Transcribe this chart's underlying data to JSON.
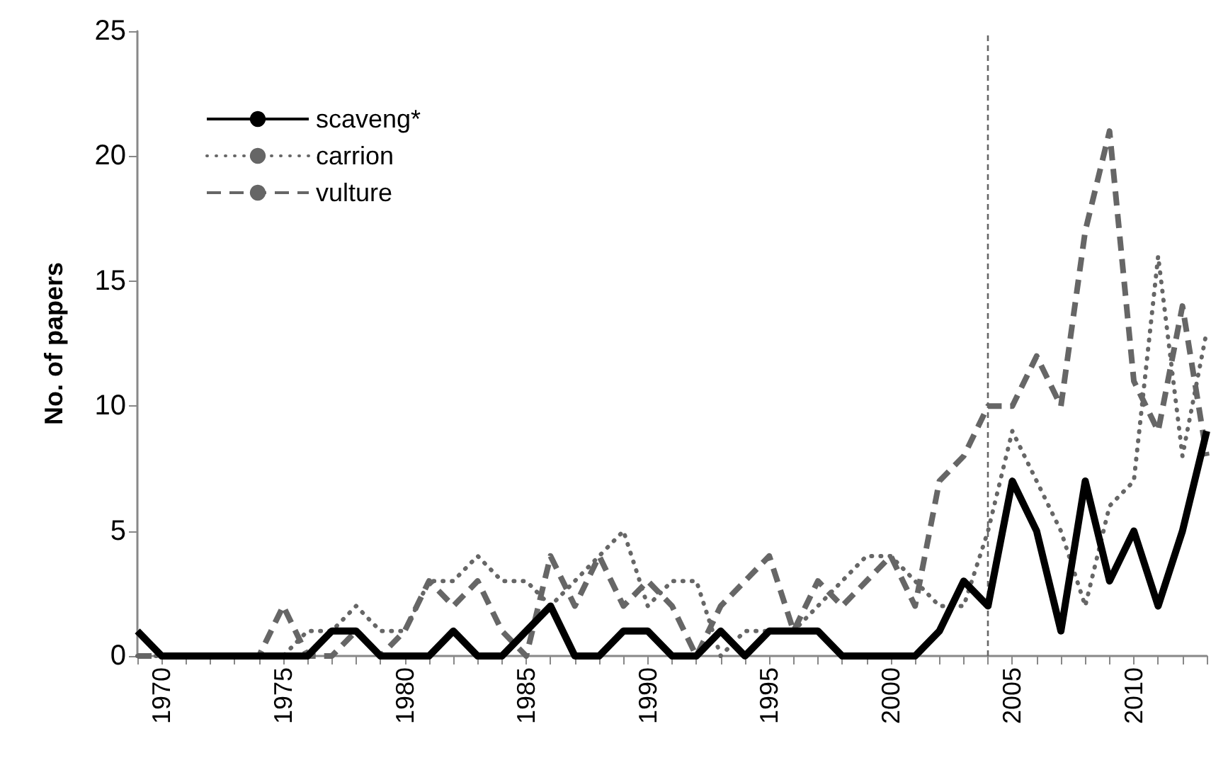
{
  "chart_data": {
    "type": "line",
    "ylabel": "No. of papers",
    "x": [
      1969,
      1970,
      1971,
      1972,
      1973,
      1974,
      1975,
      1976,
      1977,
      1978,
      1979,
      1980,
      1981,
      1982,
      1983,
      1984,
      1985,
      1986,
      1987,
      1988,
      1989,
      1990,
      1991,
      1992,
      1993,
      1994,
      1995,
      1996,
      1997,
      1998,
      1999,
      2000,
      2001,
      2002,
      2003,
      2004,
      2005,
      2006,
      2007,
      2008,
      2009,
      2010,
      2011,
      2012,
      2013
    ],
    "series": [
      {
        "name": "scaveng*",
        "color": "#000000",
        "line_style": "solid",
        "values": [
          1,
          0,
          0,
          0,
          0,
          0,
          0,
          0,
          1,
          1,
          0,
          0,
          0,
          1,
          0,
          0,
          1,
          2,
          0,
          0,
          1,
          1,
          0,
          0,
          1,
          0,
          1,
          1,
          1,
          0,
          0,
          0,
          0,
          1,
          3,
          2,
          7,
          5,
          1,
          7,
          3,
          5,
          2,
          5,
          9
        ]
      },
      {
        "name": "carrion",
        "color": "#666666",
        "line_style": "dotted",
        "values": [
          0,
          0,
          0,
          0,
          0,
          0,
          0,
          1,
          1,
          2,
          1,
          1,
          3,
          3,
          4,
          3,
          3,
          2,
          3,
          4,
          5,
          2,
          3,
          3,
          0,
          1,
          1,
          1,
          2,
          3,
          4,
          4,
          3,
          2,
          2,
          5,
          9,
          7,
          5,
          2,
          6,
          7,
          16,
          8,
          13
        ]
      },
      {
        "name": "vulture",
        "color": "#666666",
        "line_style": "dashed",
        "values": [
          0,
          0,
          0,
          0,
          0,
          0,
          2,
          0,
          0,
          1,
          0,
          1,
          3,
          2,
          3,
          1,
          0,
          4,
          2,
          4,
          2,
          3,
          2,
          0,
          2,
          3,
          4,
          1,
          3,
          2,
          3,
          4,
          2,
          7,
          8,
          10,
          10,
          12,
          10,
          17,
          21,
          11,
          9,
          14,
          8
        ]
      }
    ],
    "xlim": [
      1969,
      2013
    ],
    "xticks": [
      {
        "value": 1969,
        "label": null
      },
      1970,
      {
        "value": 1971,
        "label": null
      },
      {
        "value": 1972,
        "label": null
      },
      {
        "value": 1973,
        "label": null
      },
      {
        "value": 1974,
        "label": null
      },
      1975,
      {
        "value": 1976,
        "label": null
      },
      {
        "value": 1977,
        "label": null
      },
      {
        "value": 1978,
        "label": null
      },
      {
        "value": 1979,
        "label": null
      },
      1980,
      {
        "value": 1981,
        "label": null
      },
      {
        "value": 1982,
        "label": null
      },
      {
        "value": 1983,
        "label": null
      },
      {
        "value": 1984,
        "label": null
      },
      1985,
      {
        "value": 1986,
        "label": null
      },
      {
        "value": 1987,
        "label": null
      },
      {
        "value": 1988,
        "label": null
      },
      {
        "value": 1989,
        "label": null
      },
      1990,
      {
        "value": 1991,
        "label": null
      },
      {
        "value": 1992,
        "label": null
      },
      {
        "value": 1993,
        "label": null
      },
      {
        "value": 1994,
        "label": null
      },
      1995,
      {
        "value": 1996,
        "label": null
      },
      {
        "value": 1997,
        "label": null
      },
      {
        "value": 1998,
        "label": null
      },
      {
        "value": 1999,
        "label": null
      },
      2000,
      {
        "value": 2001,
        "label": null
      },
      {
        "value": 2002,
        "label": null
      },
      {
        "value": 2003,
        "label": null
      },
      {
        "value": 2004,
        "label": null
      },
      2005,
      {
        "value": 2006,
        "label": null
      },
      {
        "value": 2007,
        "label": null
      },
      {
        "value": 2008,
        "label": null
      },
      {
        "value": 2009,
        "label": null
      },
      2010,
      {
        "value": 2011,
        "label": null
      },
      {
        "value": 2012,
        "label": null
      },
      {
        "value": 2013,
        "label": null
      }
    ],
    "ylim": [
      0,
      25
    ],
    "yticks": [
      0,
      5,
      10,
      15,
      20,
      25
    ],
    "ref_lines": [
      {
        "axis": "x",
        "value": 2004,
        "color": "#666666",
        "line_style": "dashed"
      }
    ],
    "grid": false,
    "legend": "top left",
    "marker": "none"
  }
}
